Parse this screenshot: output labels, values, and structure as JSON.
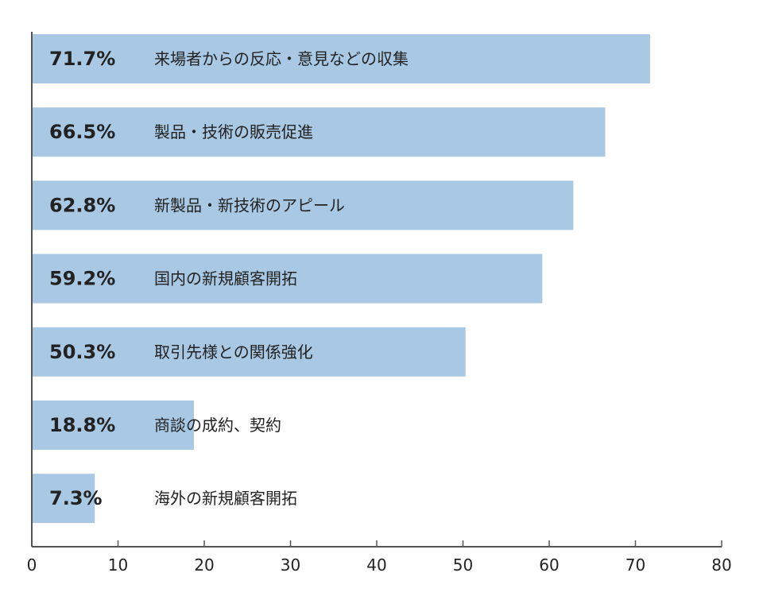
{
  "chart_data": {
    "type": "bar",
    "orientation": "horizontal",
    "categories": [
      "来場者からの反応・意見などの収集",
      "製品・技術の販売促進",
      "新製品・新技術のアピール",
      "国内の新規顧客開拓",
      "取引先様との関係強化",
      "商談の成約、契約",
      "海外の新規顧客開拓"
    ],
    "values": [
      71.7,
      66.5,
      62.8,
      59.2,
      50.3,
      18.8,
      7.3
    ],
    "value_labels": [
      "71.7%",
      "66.5%",
      "62.8%",
      "59.2%",
      "50.3%",
      "18.8%",
      "7.3%"
    ],
    "xlim": [
      0,
      80
    ],
    "x_ticks": [
      "0",
      "10",
      "20",
      "30",
      "40",
      "50",
      "60",
      "70",
      "80"
    ],
    "title": "",
    "xlabel": "",
    "ylabel": "",
    "grid": false,
    "colors": {
      "bar": "#a9c8e3",
      "axis": "#555555",
      "text": "#222222"
    }
  }
}
